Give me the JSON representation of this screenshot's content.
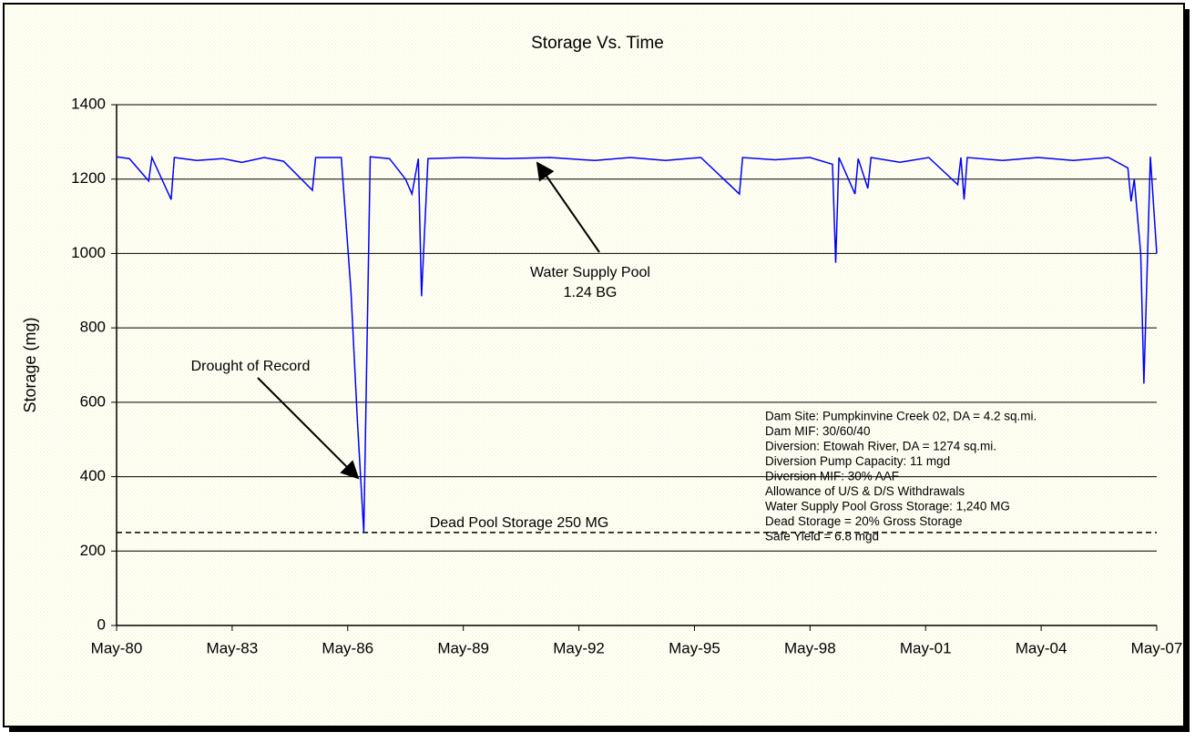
{
  "chart_data": {
    "type": "line",
    "title": "Storage Vs. Time",
    "y_label": "Storage (mg)",
    "x": [
      "1980-05",
      "1980-09",
      "1981-03",
      "1981-04",
      "1981-10",
      "1981-11",
      "1982-06",
      "1983-02",
      "1983-08",
      "1984-03",
      "1984-09",
      "1985-06",
      "1985-07",
      "1986-03",
      "1986-06",
      "1986-08",
      "1986-10",
      "1986-12",
      "1987-06",
      "1987-11",
      "1988-01",
      "1988-03",
      "1988-04",
      "1988-06",
      "1989-05",
      "1990-06",
      "1991-08",
      "1992-10",
      "1993-09",
      "1994-08",
      "1995-07",
      "1996-07",
      "1996-08",
      "1997-06",
      "1998-05",
      "1998-12",
      "1999-01",
      "1999-02",
      "1999-07",
      "1999-08",
      "1999-11",
      "1999-12",
      "2000-09",
      "2001-06",
      "2002-03",
      "2002-04",
      "2002-05",
      "2002-06",
      "2003-05",
      "2004-04",
      "2005-03",
      "2006-02",
      "2006-08",
      "2006-09",
      "2006-10",
      "2006-12",
      "2007-01",
      "2007-03",
      "2007-05"
    ],
    "series": [
      {
        "color": "#0000ff",
        "values": [
          1260,
          1255,
          1195,
          1258,
          1145,
          1258,
          1250,
          1255,
          1245,
          1258,
          1248,
          1170,
          1258,
          1258,
          900,
          550,
          250,
          1260,
          1255,
          1200,
          1160,
          1255,
          885,
          1255,
          1258,
          1255,
          1258,
          1250,
          1258,
          1250,
          1258,
          1160,
          1258,
          1252,
          1258,
          1240,
          975,
          1258,
          1160,
          1255,
          1175,
          1258,
          1245,
          1258,
          1185,
          1258,
          1145,
          1258,
          1250,
          1258,
          1250,
          1258,
          1230,
          1140,
          1200,
          1000,
          650,
          1260,
          1000
        ]
      }
    ],
    "xlim": [
      "1980-05",
      "2007-05"
    ],
    "xticks": [
      {
        "value": "1980-05",
        "label": "May-80"
      },
      {
        "value": "1983-05",
        "label": "May-83"
      },
      {
        "value": "1986-05",
        "label": "May-86"
      },
      {
        "value": "1989-05",
        "label": "May-89"
      },
      {
        "value": "1992-05",
        "label": "May-92"
      },
      {
        "value": "1995-05",
        "label": "May-95"
      },
      {
        "value": "1998-05",
        "label": "May-98"
      },
      {
        "value": "2001-05",
        "label": "May-01"
      },
      {
        "value": "2004-05",
        "label": "May-04"
      },
      {
        "value": "2007-05",
        "label": "May-07"
      }
    ],
    "ylim": [
      0,
      1400
    ],
    "yticks": [
      0,
      200,
      400,
      600,
      800,
      1000,
      1200,
      1400
    ],
    "grid": true,
    "reference_lines": [
      {
        "value": 250,
        "label": "Dead Pool Storage 250 MG"
      }
    ],
    "annotations": [
      "Water Supply Pool",
      "1.24 BG",
      "Drought of Record"
    ],
    "info_box": [
      "Dam Site: Pumpkinvine Creek 02, DA = 4.2 sq.mi.",
      "Dam MIF: 30/60/40",
      "Diversion: Etowah River, DA = 1274 sq.mi.",
      "Diversion Pump Capacity: 11 mgd",
      "Diversion MIF: 30% AAF",
      "Allowance of U/S & D/S Withdrawals",
      "Water Supply Pool Gross Storage: 1,240 MG",
      "Dead Storage = 20% Gross Storage",
      "Safe Yield = 6.8 mgd"
    ]
  }
}
